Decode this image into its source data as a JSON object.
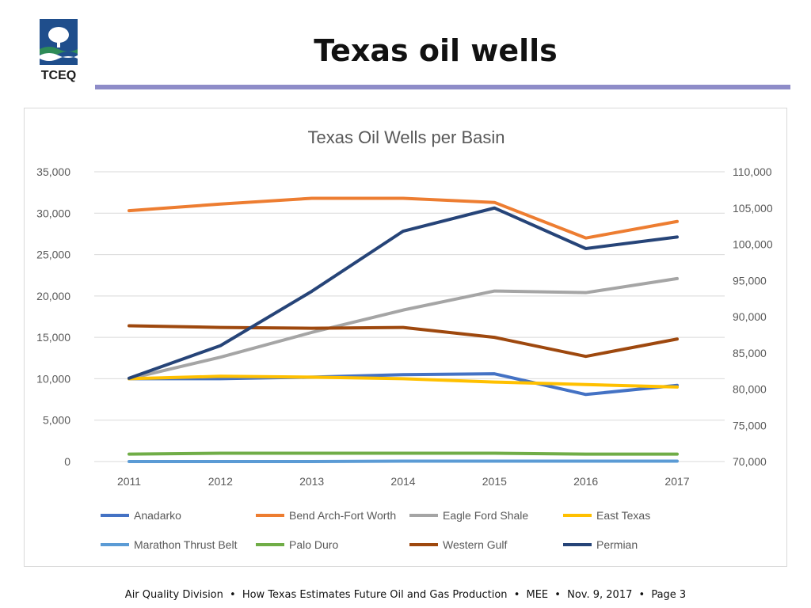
{
  "slide": {
    "title": "Texas oil wells",
    "logo_text": "TCEQ",
    "footer": {
      "division": "Air Quality Division",
      "presentation": "How Texas Estimates Future Oil and Gas Production",
      "event": "MEE",
      "date": "Nov. 9, 2017",
      "page": "Page 3",
      "bullet": "•"
    }
  },
  "colors": {
    "title_rule": "#8e8cc8",
    "logo_blue": "#1f4e8c",
    "logo_green": "#2e8b57"
  },
  "chart_data": {
    "type": "line",
    "title": "Texas Oil Wells per Basin",
    "categories": [
      "2011",
      "2012",
      "2013",
      "2014",
      "2015",
      "2016",
      "2017"
    ],
    "y_left": {
      "min": 0,
      "max": 35000,
      "ticks": [
        0,
        5000,
        10000,
        15000,
        20000,
        25000,
        30000,
        35000
      ],
      "tick_labels": [
        "0",
        "5,000",
        "10,000",
        "15,000",
        "20,000",
        "25,000",
        "30,000",
        "35,000"
      ]
    },
    "y_right": {
      "min": 70000,
      "max": 110000,
      "ticks": [
        70000,
        75000,
        80000,
        85000,
        90000,
        95000,
        100000,
        105000,
        110000
      ],
      "tick_labels": [
        "70,000",
        "75,000",
        "80,000",
        "85,000",
        "90,000",
        "95,000",
        "100,000",
        "105,000",
        "110,000"
      ]
    },
    "grid": true,
    "legend_position": "bottom",
    "series": [
      {
        "name": "Anadarko",
        "axis": "left",
        "color": "#4472c4",
        "values": [
          10000,
          10000,
          10200,
          10500,
          10600,
          8100,
          9200
        ]
      },
      {
        "name": "Bend Arch-Fort Worth",
        "axis": "left",
        "color": "#ed7d31",
        "values": [
          30300,
          31100,
          31800,
          31800,
          31300,
          27000,
          29000
        ]
      },
      {
        "name": "Eagle Ford Shale",
        "axis": "left",
        "color": "#a5a5a5",
        "values": [
          10000,
          12600,
          15600,
          18300,
          20600,
          20400,
          22100
        ]
      },
      {
        "name": "East Texas",
        "axis": "left",
        "color": "#ffc000",
        "values": [
          10000,
          10300,
          10200,
          10000,
          9600,
          9300,
          9000
        ]
      },
      {
        "name": "Marathon Thrust Belt",
        "axis": "left",
        "color": "#5b9bd5",
        "values": [
          0,
          0,
          0,
          50,
          50,
          50,
          50
        ]
      },
      {
        "name": "Palo Duro",
        "axis": "left",
        "color": "#70ad47",
        "values": [
          900,
          1000,
          1000,
          1000,
          1000,
          900,
          900
        ]
      },
      {
        "name": "Western Gulf",
        "axis": "left",
        "color": "#9e480e",
        "values": [
          16400,
          16200,
          16100,
          16200,
          15000,
          12700,
          14800
        ]
      },
      {
        "name": "Permian",
        "axis": "right",
        "color": "#264478",
        "values": [
          81500,
          86000,
          93500,
          101800,
          105000,
          99400,
          101000
        ]
      }
    ]
  }
}
